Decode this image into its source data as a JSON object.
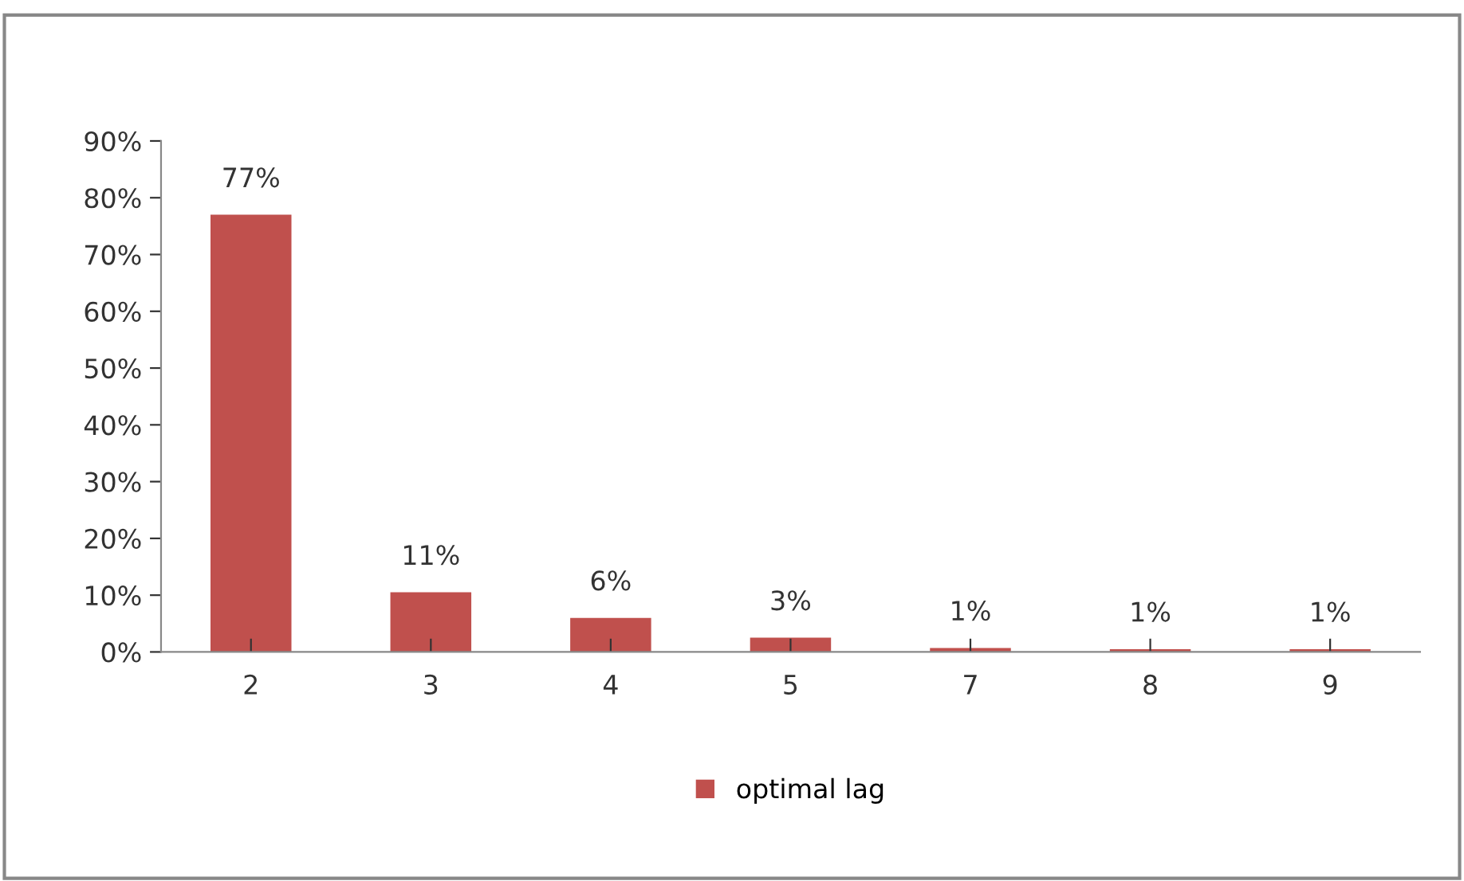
{
  "chart_data": {
    "type": "bar",
    "categories": [
      "2",
      "3",
      "4",
      "5",
      "7",
      "8",
      "9"
    ],
    "series": [
      {
        "name": "optimal lag",
        "color": "#c0504d",
        "values": [
          77,
          10.5,
          6,
          2.5,
          0.7,
          0.5,
          0.5
        ],
        "value_labels": [
          "77%",
          "11%",
          "6%",
          "3%",
          "1%",
          "1%",
          "1%"
        ]
      }
    ],
    "ylim": [
      0,
      90
    ],
    "yticks": [
      {
        "value": 0,
        "label": "0%"
      },
      {
        "value": 10,
        "label": "10%"
      },
      {
        "value": 20,
        "label": "20%"
      },
      {
        "value": 30,
        "label": "30%"
      },
      {
        "value": 40,
        "label": "40%"
      },
      {
        "value": 50,
        "label": "50%"
      },
      {
        "value": 60,
        "label": "60%"
      },
      {
        "value": 70,
        "label": "70%"
      },
      {
        "value": 80,
        "label": "80%"
      },
      {
        "value": 90,
        "label": "90%"
      }
    ],
    "grid": false,
    "legend": "bottom"
  }
}
